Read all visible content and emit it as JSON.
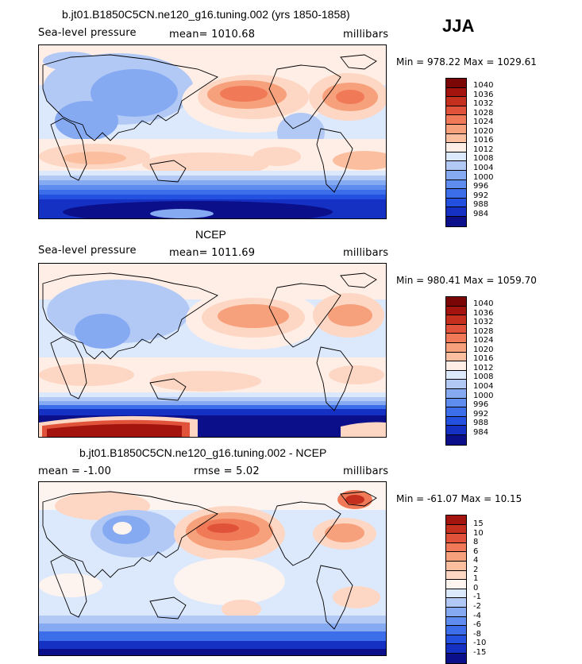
{
  "season": "JJA",
  "colors": {
    "abs": [
      "#0b0f8a",
      "#1531c4",
      "#2450e0",
      "#3d6ee9",
      "#5e8cef",
      "#86aaf2",
      "#b2c9f6",
      "#dce8fb",
      "#ffeee6",
      "#fdd7c4",
      "#fbbe9f",
      "#f7a07c",
      "#f07a58",
      "#e0533a",
      "#c52f1e",
      "#a4140f",
      "#7a0606"
    ],
    "diff": [
      "#0b0f8a",
      "#1531c4",
      "#2450e0",
      "#3d6ee9",
      "#5e8cef",
      "#86aaf2",
      "#b2c9f6",
      "#dce8fb",
      "#fdf4ef",
      "#fdd7c4",
      "#fbbe9f",
      "#f7a07c",
      "#f07a58",
      "#e0533a",
      "#c52f1e",
      "#a4140f"
    ]
  },
  "panels": [
    {
      "title": "b.jt01.B1850C5CN.ne120_g16.tuning.002 (yrs 1850-1858)",
      "variable": "Sea-level pressure",
      "mean": "mean= 1010.68",
      "units": "millibars",
      "minmax": "Min = 978.22 Max = 1029.61",
      "legend_labels": [
        "1040",
        "1036",
        "1032",
        "1028",
        "1024",
        "1020",
        "1016",
        "1012",
        "1008",
        "1004",
        "1000",
        "996",
        "992",
        "988",
        "984"
      ]
    },
    {
      "title": "NCEP",
      "variable": "Sea-level pressure",
      "mean": "mean= 1011.69",
      "units": "millibars",
      "minmax": "Min = 980.41 Max = 1059.70",
      "legend_labels": [
        "1040",
        "1036",
        "1032",
        "1028",
        "1024",
        "1020",
        "1016",
        "1012",
        "1008",
        "1004",
        "1000",
        "996",
        "992",
        "988",
        "984"
      ]
    },
    {
      "title": "b.jt01.B1850C5CN.ne120_g16.tuning.002 - NCEP",
      "mean_left": "mean =   -1.00",
      "rmse": "rmse =    5.02",
      "units": "millibars",
      "minmax": "Min = -61.07 Max =  10.15",
      "legend_labels": [
        "15",
        "10",
        "8",
        "6",
        "4",
        "2",
        "1",
        "0",
        "-1",
        "-2",
        "-4",
        "-6",
        "-8",
        "-10",
        "-15"
      ]
    }
  ]
}
